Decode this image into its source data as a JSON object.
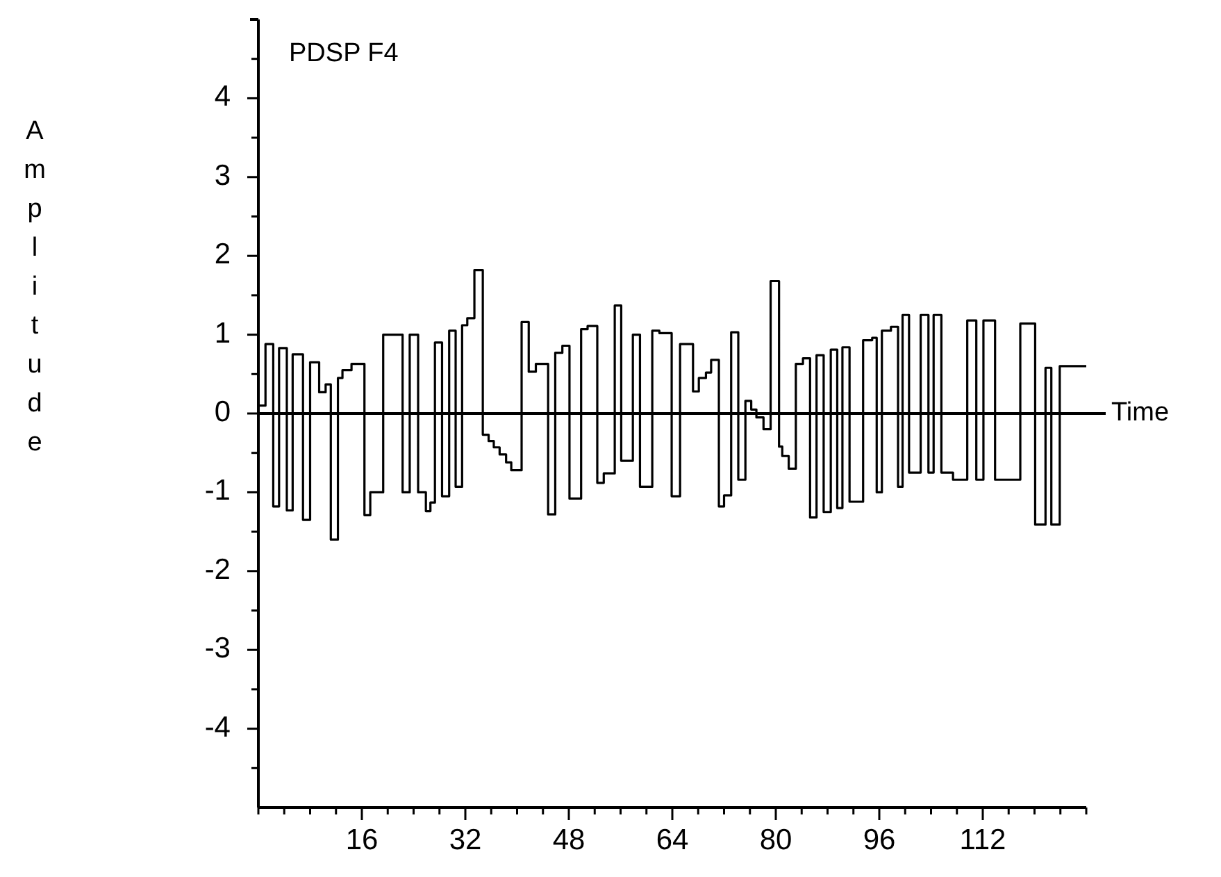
{
  "chart_data": {
    "type": "step",
    "title": "PDSP F4",
    "xlabel": "Time",
    "ylabel": "Amplitude",
    "xlim": [
      0,
      128
    ],
    "xticks": [
      {
        "value": 0,
        "label": null
      },
      {
        "value": 4,
        "label": null
      },
      {
        "value": 8,
        "label": null
      },
      {
        "value": 12,
        "label": null
      },
      16,
      {
        "value": 20,
        "label": null
      },
      {
        "value": 24,
        "label": null
      },
      {
        "value": 28,
        "label": null
      },
      32,
      {
        "value": 36,
        "label": null
      },
      {
        "value": 40,
        "label": null
      },
      {
        "value": 44,
        "label": null
      },
      48,
      {
        "value": 52,
        "label": null
      },
      {
        "value": 56,
        "label": null
      },
      {
        "value": 60,
        "label": null
      },
      64,
      {
        "value": 68,
        "label": null
      },
      {
        "value": 72,
        "label": null
      },
      {
        "value": 76,
        "label": null
      },
      80,
      {
        "value": 84,
        "label": null
      },
      {
        "value": 88,
        "label": null
      },
      {
        "value": 92,
        "label": null
      },
      96,
      {
        "value": 100,
        "label": null
      },
      {
        "value": 104,
        "label": null
      },
      {
        "value": 108,
        "label": null
      },
      112,
      {
        "value": 116,
        "label": null
      },
      {
        "value": 120,
        "label": null
      },
      {
        "value": 124,
        "label": null
      },
      {
        "value": 128,
        "label": null
      }
    ],
    "ylim": [
      -5,
      5
    ],
    "yticks": [
      {
        "value": -4.5,
        "label": null
      },
      -4,
      {
        "value": -3.5,
        "label": null
      },
      -3,
      {
        "value": -2.5,
        "label": null
      },
      -2,
      {
        "value": -1.5,
        "label": null
      },
      -1,
      {
        "value": -0.5,
        "label": null
      },
      0,
      {
        "value": 0.5,
        "label": null
      },
      1,
      {
        "value": 1.5,
        "label": null
      },
      2,
      {
        "value": 2.5,
        "label": null
      },
      3,
      {
        "value": 3.5,
        "label": null
      },
      4,
      {
        "value": 4.5,
        "label": null
      }
    ],
    "ref_lines": [
      {
        "axis": "y",
        "value": 0
      }
    ],
    "series": [
      {
        "color": "#000000",
        "x": [
          0,
          1.1,
          2.3,
          3.2,
          4.4,
          5.3,
          6.9,
          8.0,
          9.4,
          10.4,
          11.2,
          12.3,
          13.0,
          14.4,
          16.4,
          17.3,
          19.3,
          22.3,
          23.4,
          24.7,
          25.9,
          26.6,
          27.3,
          28.4,
          29.5,
          30.5,
          31.5,
          32.3,
          33.4,
          34.7,
          35.6,
          36.4,
          37.3,
          38.3,
          39.1,
          40.7,
          41.8,
          42.9,
          44.8,
          45.9,
          47.0,
          48.1,
          49.9,
          50.9,
          52.4,
          53.4,
          55.1,
          56.1,
          57.9,
          59.0,
          60.9,
          62.0,
          63.9,
          65.2,
          67.2,
          68.1,
          69.2,
          70.0,
          71.2,
          72.0,
          73.1,
          74.2,
          75.3,
          76.2,
          77.0,
          78.1,
          79.2,
          80.5,
          81.0,
          82.0,
          83.1,
          84.2,
          85.3,
          86.3,
          87.4,
          88.5,
          89.5,
          90.3,
          91.4,
          93.5,
          94.9,
          95.6,
          96.4,
          97.8,
          98.9,
          99.6,
          100.6,
          102.4,
          103.6,
          104.4,
          105.6,
          107.4,
          109.6,
          111.0,
          112.1,
          113.9,
          117.8,
          120.1,
          121.7,
          122.6,
          123.9,
          128
        ],
        "values": [
          0.1,
          0.88,
          -1.18,
          0.83,
          -1.23,
          0.75,
          -1.35,
          0.65,
          0.27,
          0.37,
          -1.6,
          0.45,
          0.55,
          0.63,
          -1.29,
          -1.0,
          1.0,
          -1.0,
          1.0,
          -1.0,
          -1.24,
          -1.13,
          0.9,
          -1.05,
          1.05,
          -0.93,
          1.12,
          1.21,
          1.82,
          -0.27,
          -0.35,
          -0.43,
          -0.52,
          -0.62,
          -0.72,
          1.16,
          0.53,
          0.63,
          -1.28,
          0.77,
          0.86,
          -1.08,
          1.07,
          1.11,
          -0.88,
          -0.76,
          1.37,
          -0.6,
          1.0,
          -0.93,
          1.05,
          1.02,
          -1.05,
          0.88,
          0.28,
          0.45,
          0.52,
          0.68,
          -1.18,
          -1.04,
          1.03,
          -0.84,
          0.16,
          0.05,
          -0.05,
          -0.2,
          1.68,
          -0.42,
          -0.54,
          -0.7,
          0.63,
          0.7,
          -1.32,
          0.74,
          -1.25,
          0.81,
          -1.2,
          0.84,
          -1.12,
          0.93,
          0.96,
          -1.0,
          1.05,
          1.1,
          -0.93,
          1.25,
          -0.75,
          1.25,
          -0.75,
          1.25,
          -0.75,
          -0.84,
          1.18,
          -0.84,
          1.18,
          -0.84,
          1.14,
          -1.41,
          0.58,
          -1.41,
          0.6,
          0.6
        ]
      }
    ]
  }
}
